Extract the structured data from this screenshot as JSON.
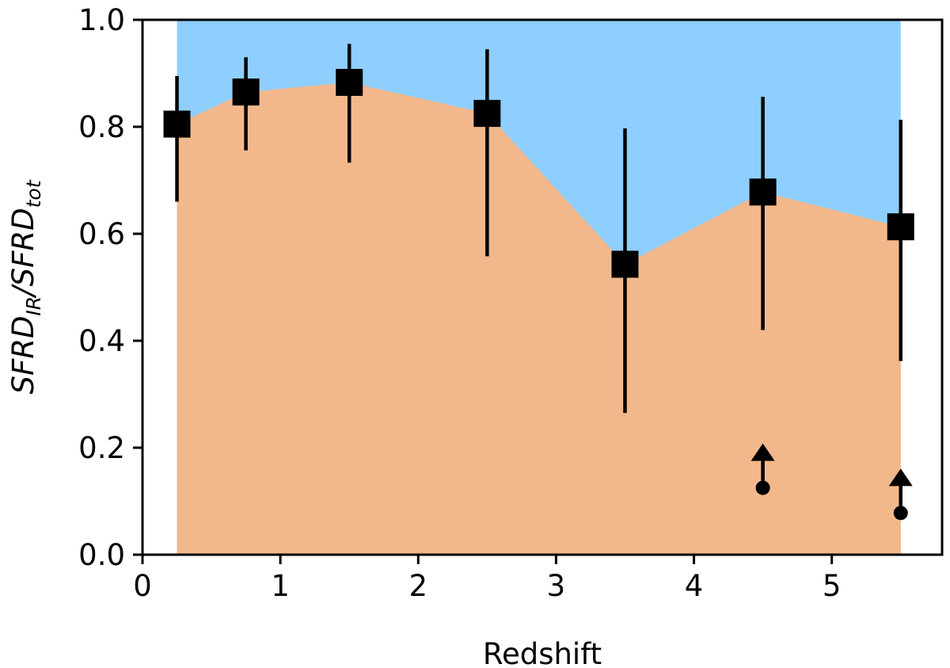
{
  "chart_data": {
    "type": "scatter",
    "xlabel": "Redshift",
    "ylabel": {
      "main1": "SFRD",
      "sub1": "IR",
      "sep": "/SFRD",
      "sub2": "tot"
    },
    "xlim": [
      0,
      5.8
    ],
    "ylim": [
      0,
      1.0
    ],
    "xticks": [
      0,
      1,
      2,
      3,
      4,
      5
    ],
    "yticks": [
      0.0,
      0.2,
      0.4,
      0.6,
      0.8,
      1.0
    ],
    "xtick_labels": [
      "0",
      "1",
      "2",
      "3",
      "4",
      "5"
    ],
    "ytick_labels": [
      "0.0",
      "0.2",
      "0.4",
      "0.6",
      "0.8",
      "1.0"
    ],
    "grid": false,
    "fill_x_range": [
      0.25,
      5.5
    ],
    "colors": {
      "upper_fill": "#8ecfff",
      "lower_fill": "#f2b88c",
      "markers": "#000000"
    },
    "series": [
      {
        "marker": "square",
        "x": [
          0.25,
          0.75,
          1.5,
          2.5,
          3.5,
          4.5,
          5.5
        ],
        "y": [
          0.805,
          0.865,
          0.883,
          0.825,
          0.543,
          0.678,
          0.613
        ],
        "yerr_low": [
          0.66,
          0.756,
          0.733,
          0.558,
          0.265,
          0.42,
          0.362
        ],
        "yerr_high": [
          0.895,
          0.93,
          0.955,
          0.945,
          0.797,
          0.856,
          0.813
        ]
      },
      {
        "marker": "circle-lower-limit",
        "x": [
          4.5,
          5.5
        ],
        "y": [
          0.125,
          0.078
        ]
      }
    ]
  }
}
